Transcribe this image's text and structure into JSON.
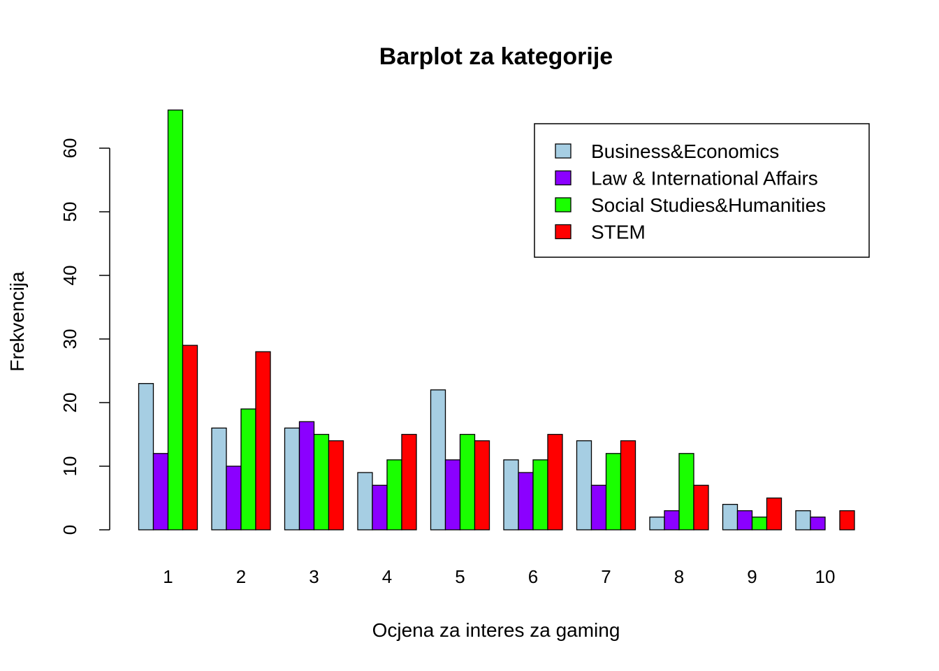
{
  "chart_data": {
    "type": "bar",
    "title": "Barplot za kategorije",
    "xlabel": "Ocjena za interes za gaming",
    "ylabel": "Frekvencija",
    "categories": [
      "1",
      "2",
      "3",
      "4",
      "5",
      "6",
      "7",
      "8",
      "9",
      "10"
    ],
    "yticks": [
      "0",
      "10",
      "20",
      "30",
      "40",
      "50",
      "60"
    ],
    "ylim": [
      0,
      66
    ],
    "grid": false,
    "legend_position": "top-right",
    "series": [
      {
        "name": "Business&Economics",
        "color": "#a6cee3",
        "values": [
          23,
          16,
          16,
          9,
          22,
          11,
          14,
          2,
          4,
          3
        ]
      },
      {
        "name": "Law & International Affairs",
        "color": "#8b00ff",
        "values": [
          12,
          10,
          17,
          7,
          11,
          9,
          7,
          3,
          3,
          2
        ]
      },
      {
        "name": "Social Studies&Humanities",
        "color": "#1aff00",
        "values": [
          66,
          19,
          15,
          11,
          15,
          11,
          12,
          12,
          2,
          0
        ]
      },
      {
        "name": "STEM",
        "color": "#ff0000",
        "values": [
          29,
          28,
          14,
          15,
          14,
          15,
          14,
          7,
          5,
          3
        ]
      }
    ]
  }
}
